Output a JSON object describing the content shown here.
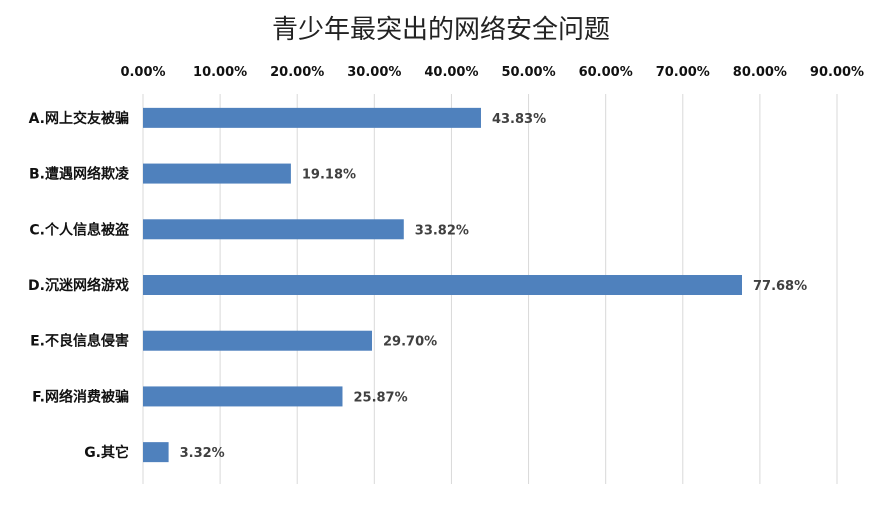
{
  "chart_data": {
    "type": "bar",
    "orientation": "horizontal",
    "title": "青少年最突出的网络安全问题",
    "categories": [
      "A.网上交友被骗",
      "B.遭遇网络欺凌",
      "C.个人信息被盗",
      "D.沉迷网络游戏",
      "E.不良信息侵害",
      "F.网络消费被骗",
      "G.其它"
    ],
    "values": [
      43.83,
      19.18,
      33.82,
      77.68,
      29.7,
      25.87,
      3.32
    ],
    "value_labels": [
      "43.83%",
      "19.18%",
      "33.82%",
      "77.68%",
      "29.70%",
      "25.87%",
      "3.32%"
    ],
    "xlim": [
      0,
      90
    ],
    "x_ticks": [
      0,
      10,
      20,
      30,
      40,
      50,
      60,
      70,
      80,
      90
    ],
    "x_tick_labels": [
      "0.00%",
      "10.00%",
      "20.00%",
      "30.00%",
      "40.00%",
      "50.00%",
      "60.00%",
      "70.00%",
      "80.00%",
      "90.00%"
    ],
    "x_axis_position": "top",
    "grid": true,
    "legend": "none",
    "colors": {
      "bar": "#4F81BD",
      "grid": "#D9D9D9",
      "title": "#222222",
      "axis_text": "#111111",
      "data_label": "#404040"
    }
  }
}
